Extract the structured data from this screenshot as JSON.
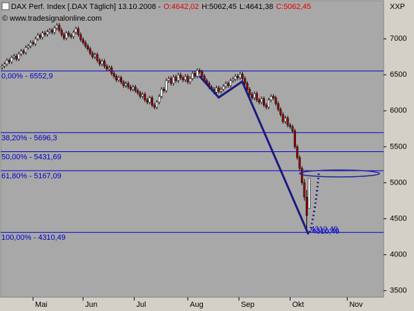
{
  "chart_data": {
    "type": "candlestick",
    "title": "DAX Perf. Index [.DAX Täglich] 13.10.2008 -",
    "header_values": [
      "O:4642,02",
      "H:5062,45",
      "L:4641,38",
      "C:5062,45"
    ],
    "header_colors": [
      "#e00000",
      "#000000",
      "#000000",
      "#e00000"
    ],
    "source": "© www.tradesignalonline.com",
    "axis_label": "XXP",
    "up_color": "#ffffff",
    "down_color": "#a00000",
    "level_color": "#0000c8",
    "xlim": [
      -0.6,
      160.3
    ],
    "xticks": [
      {
        "value": 13,
        "label": "Mai"
      },
      {
        "value": 34,
        "label": "Jun"
      },
      {
        "value": 55.5,
        "label": "Jul"
      },
      {
        "value": 78,
        "label": "Aug"
      },
      {
        "value": 99.5,
        "label": "Sep"
      },
      {
        "value": 121,
        "label": "Okt"
      },
      {
        "value": 145,
        "label": "Nov"
      }
    ],
    "ylim": [
      3410,
      7530
    ],
    "yticks": [
      3500,
      4000,
      4500,
      5000,
      5500,
      6000,
      6500,
      7000
    ],
    "levels": [
      {
        "value": 6552.9,
        "label": "0,00% - 6552,9"
      },
      {
        "value": 5696.3,
        "label": "38,20% - 5696,3"
      },
      {
        "value": 5431.69,
        "label": "50,00% - 5431,69"
      },
      {
        "value": 5167.09,
        "label": "61,80% - 5167,09"
      },
      {
        "value": 4310.49,
        "label": "100,00% - 4310,49"
      }
    ],
    "annotations": [
      "4310,49",
      "4310,49"
    ],
    "ohlc": [
      [
        6600,
        6650,
        6570,
        6620
      ],
      [
        6620,
        6680,
        6590,
        6650
      ],
      [
        6650,
        6730,
        6620,
        6700
      ],
      [
        6700,
        6730,
        6650,
        6680
      ],
      [
        6680,
        6770,
        6650,
        6740
      ],
      [
        6740,
        6790,
        6710,
        6760
      ],
      [
        6760,
        6790,
        6690,
        6720
      ],
      [
        6720,
        6820,
        6690,
        6790
      ],
      [
        6790,
        6860,
        6760,
        6830
      ],
      [
        6830,
        6860,
        6780,
        6810
      ],
      [
        6810,
        6910,
        6780,
        6880
      ],
      [
        6880,
        6930,
        6850,
        6900
      ],
      [
        6900,
        6980,
        6870,
        6950
      ],
      [
        6950,
        6980,
        6900,
        6930
      ],
      [
        6930,
        7030,
        6900,
        7000
      ],
      [
        7000,
        7080,
        6970,
        7050
      ],
      [
        7050,
        7080,
        6990,
        7020
      ],
      [
        7020,
        7110,
        6990,
        7080
      ],
      [
        7080,
        7110,
        7030,
        7060
      ],
      [
        7060,
        7130,
        7030,
        7100
      ],
      [
        7100,
        7150,
        7070,
        7120
      ],
      [
        7120,
        7150,
        7060,
        7090
      ],
      [
        7090,
        7180,
        7060,
        7150
      ],
      [
        7150,
        7220,
        7120,
        7190
      ],
      [
        7190,
        7220,
        7090,
        7120
      ],
      [
        7120,
        7150,
        7030,
        7060
      ],
      [
        7060,
        7090,
        6980,
        7010
      ],
      [
        7010,
        7110,
        6980,
        7080
      ],
      [
        7080,
        7110,
        7020,
        7050
      ],
      [
        7050,
        7080,
        7000,
        7030
      ],
      [
        7030,
        7120,
        7000,
        7090
      ],
      [
        7090,
        7170,
        7060,
        7140
      ],
      [
        7140,
        7170,
        7030,
        7060
      ],
      [
        7060,
        7090,
        6960,
        6990
      ],
      [
        6990,
        7020,
        6920,
        6950
      ],
      [
        6950,
        6980,
        6870,
        6900
      ],
      [
        6900,
        6930,
        6830,
        6860
      ],
      [
        6860,
        6890,
        6770,
        6800
      ],
      [
        6800,
        6830,
        6720,
        6750
      ],
      [
        6750,
        6810,
        6720,
        6780
      ],
      [
        6780,
        6810,
        6670,
        6700
      ],
      [
        6700,
        6730,
        6620,
        6650
      ],
      [
        6650,
        6720,
        6620,
        6690
      ],
      [
        6690,
        6720,
        6590,
        6620
      ],
      [
        6620,
        6650,
        6550,
        6580
      ],
      [
        6580,
        6630,
        6550,
        6600
      ],
      [
        6600,
        6630,
        6490,
        6520
      ],
      [
        6520,
        6550,
        6450,
        6480
      ],
      [
        6480,
        6510,
        6400,
        6430
      ],
      [
        6430,
        6490,
        6400,
        6460
      ],
      [
        6460,
        6490,
        6370,
        6400
      ],
      [
        6400,
        6430,
        6320,
        6350
      ],
      [
        6350,
        6410,
        6320,
        6380
      ],
      [
        6380,
        6410,
        6300,
        6330
      ],
      [
        6330,
        6360,
        6270,
        6300
      ],
      [
        6300,
        6360,
        6270,
        6330
      ],
      [
        6330,
        6360,
        6250,
        6280
      ],
      [
        6280,
        6310,
        6220,
        6250
      ],
      [
        6250,
        6280,
        6170,
        6200
      ],
      [
        6200,
        6260,
        6170,
        6230
      ],
      [
        6230,
        6260,
        6120,
        6150
      ],
      [
        6150,
        6180,
        6090,
        6120
      ],
      [
        6120,
        6210,
        6090,
        6180
      ],
      [
        6180,
        6210,
        6050,
        6080
      ],
      [
        6080,
        6110,
        6020,
        6050
      ],
      [
        6050,
        6150,
        6020,
        6120
      ],
      [
        6120,
        6230,
        6090,
        6200
      ],
      [
        6200,
        6330,
        6170,
        6300
      ],
      [
        6300,
        6330,
        6250,
        6280
      ],
      [
        6280,
        6450,
        6250,
        6420
      ],
      [
        6420,
        6480,
        6390,
        6450
      ],
      [
        6450,
        6480,
        6350,
        6380
      ],
      [
        6380,
        6500,
        6350,
        6470
      ],
      [
        6470,
        6500,
        6390,
        6420
      ],
      [
        6420,
        6530,
        6390,
        6500
      ],
      [
        6500,
        6530,
        6430,
        6460
      ],
      [
        6460,
        6490,
        6400,
        6430
      ],
      [
        6430,
        6510,
        6400,
        6480
      ],
      [
        6480,
        6510,
        6370,
        6400
      ],
      [
        6400,
        6480,
        6370,
        6450
      ],
      [
        6450,
        6550,
        6420,
        6520
      ],
      [
        6520,
        6550,
        6450,
        6480
      ],
      [
        6480,
        6590,
        6450,
        6560
      ],
      [
        6560,
        6590,
        6510,
        6540
      ],
      [
        6540,
        6570,
        6450,
        6480
      ],
      [
        6480,
        6510,
        6390,
        6420
      ],
      [
        6420,
        6450,
        6350,
        6380
      ],
      [
        6380,
        6410,
        6300,
        6330
      ],
      [
        6330,
        6360,
        6270,
        6300
      ],
      [
        6300,
        6330,
        6230,
        6260
      ],
      [
        6260,
        6350,
        6230,
        6320
      ],
      [
        6320,
        6350,
        6240,
        6270
      ],
      [
        6270,
        6330,
        6240,
        6300
      ],
      [
        6300,
        6370,
        6270,
        6340
      ],
      [
        6340,
        6410,
        6310,
        6380
      ],
      [
        6380,
        6410,
        6320,
        6350
      ],
      [
        6350,
        6450,
        6320,
        6420
      ],
      [
        6420,
        6470,
        6390,
        6440
      ],
      [
        6440,
        6510,
        6410,
        6480
      ],
      [
        6480,
        6510,
        6430,
        6460
      ],
      [
        6460,
        6540,
        6430,
        6510
      ],
      [
        6510,
        6540,
        6420,
        6450
      ],
      [
        6450,
        6480,
        6350,
        6380
      ],
      [
        6380,
        6410,
        6270,
        6300
      ],
      [
        6300,
        6330,
        6200,
        6230
      ],
      [
        6230,
        6260,
        6150,
        6180
      ],
      [
        6180,
        6270,
        6150,
        6240
      ],
      [
        6240,
        6270,
        6120,
        6150
      ],
      [
        6150,
        6180,
        6090,
        6120
      ],
      [
        6120,
        6200,
        6090,
        6170
      ],
      [
        6170,
        6200,
        6050,
        6080
      ],
      [
        6080,
        6110,
        6020,
        6050
      ],
      [
        6050,
        6180,
        6020,
        6150
      ],
      [
        6150,
        6230,
        6120,
        6200
      ],
      [
        6200,
        6230,
        6150,
        6180
      ],
      [
        6180,
        6210,
        6070,
        6100
      ],
      [
        6100,
        6130,
        5990,
        6020
      ],
      [
        6020,
        6050,
        5920,
        5950
      ],
      [
        5950,
        5980,
        5820,
        5850
      ],
      [
        5850,
        5930,
        5820,
        5900
      ],
      [
        5900,
        5930,
        5770,
        5800
      ],
      [
        5800,
        5830,
        5750,
        5780
      ],
      [
        5780,
        5810,
        5690,
        5720
      ],
      [
        5720,
        5750,
        5470,
        5500
      ],
      [
        5500,
        5530,
        5320,
        5350
      ],
      [
        5350,
        5380,
        5170,
        5200
      ],
      [
        5200,
        5230,
        4970,
        5000
      ],
      [
        5000,
        5050,
        4750,
        4800
      ],
      [
        4800,
        4900,
        4310,
        4544
      ],
      [
        4642.02,
        5062.45,
        4641.38,
        5062.45
      ]
    ]
  }
}
